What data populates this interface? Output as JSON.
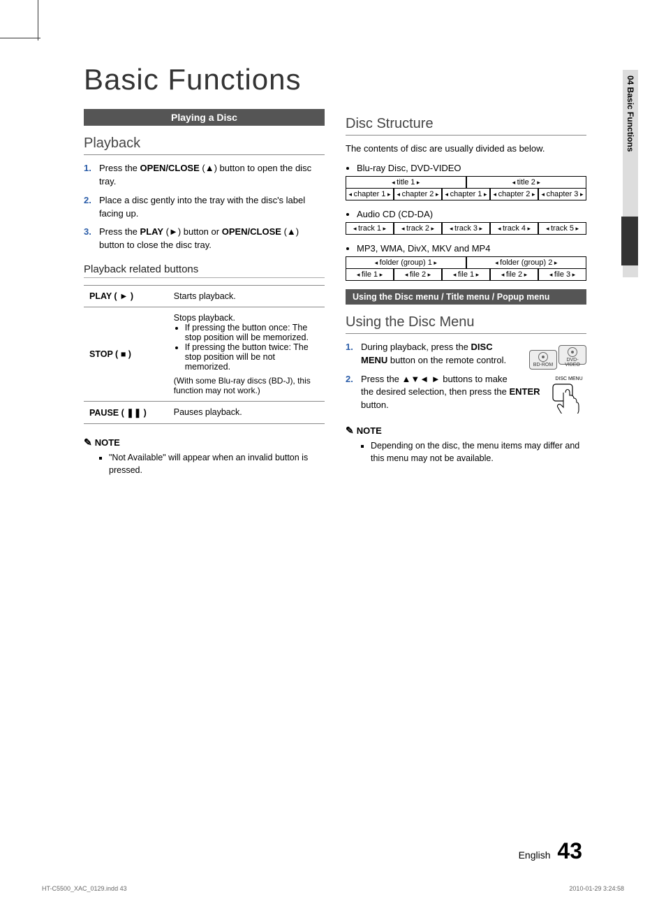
{
  "page_title": "Basic Functions",
  "side_tab": "04   Basic Functions",
  "left": {
    "section_bar": "Playing a Disc",
    "h2": "Playback",
    "steps": [
      "Press the <b>OPEN/CLOSE</b> (▲) button to open the disc tray.",
      "Place a disc gently into the tray with the disc's label facing up.",
      "Press the <b>PLAY</b> (►) button or <b>OPEN/CLOSE</b> (▲) button to close the disc tray."
    ],
    "h3": "Playback related buttons",
    "table": [
      {
        "k": "PLAY ( ► )",
        "v": "Starts playback."
      },
      {
        "k": "STOP ( ■ )",
        "v": "Stops playback.<ul class='cell-sub'><li>If pressing the button once: The stop position will be memorized.</li><li>If pressing the button twice: The stop position will be not memorized.</li></ul><div class='cell-note'>(With some Blu-ray discs (BD-J), this function may not work.)</div>"
      },
      {
        "k": "PAUSE ( ❚❚ )",
        "v": "Pauses playback."
      }
    ],
    "note_head": "NOTE",
    "note_items": [
      "\"Not Available\" will appear when an invalid button is pressed."
    ]
  },
  "right": {
    "h2a": "Disc Structure",
    "intro": "The contents of disc are usually divided as below.",
    "groups": [
      {
        "label": "Blu-ray Disc, DVD-VIDEO",
        "rows": [
          [
            "title 1",
            "title 2"
          ],
          [
            "chapter 1",
            "chapter 2",
            "chapter 1",
            "chapter 2",
            "chapter 3"
          ]
        ]
      },
      {
        "label": "Audio CD (CD-DA)",
        "rows": [
          [
            "track 1",
            "track 2",
            "track 3",
            "track 4",
            "track 5"
          ]
        ]
      },
      {
        "label": "MP3, WMA, DivX, MKV and MP4",
        "rows": [
          [
            "folder (group) 1",
            "folder (group) 2"
          ],
          [
            "file 1",
            "file 2",
            "file 1",
            "file 2",
            "file 3"
          ]
        ]
      }
    ],
    "section_bar": "Using the Disc menu / Title menu / Popup menu",
    "h2b": "Using the Disc Menu",
    "badges": [
      "BD-ROM",
      "DVD-VIDEO"
    ],
    "remote_label": "DISC MENU",
    "steps": [
      "During playback, press the <b>DISC MENU</b>  button on the remote control.",
      "Press the ▲▼◄ ► buttons to make the desired selection, then press the <b>ENTER</b> button."
    ],
    "note_head": "NOTE",
    "note_items": [
      "Depending on the disc, the menu items may differ and this menu may not be available."
    ]
  },
  "footer_lang": "English",
  "footer_page": "43",
  "imprint_left": "HT-C5500_XAC_0129.indd   43",
  "imprint_right": "2010-01-29    3:24:58"
}
